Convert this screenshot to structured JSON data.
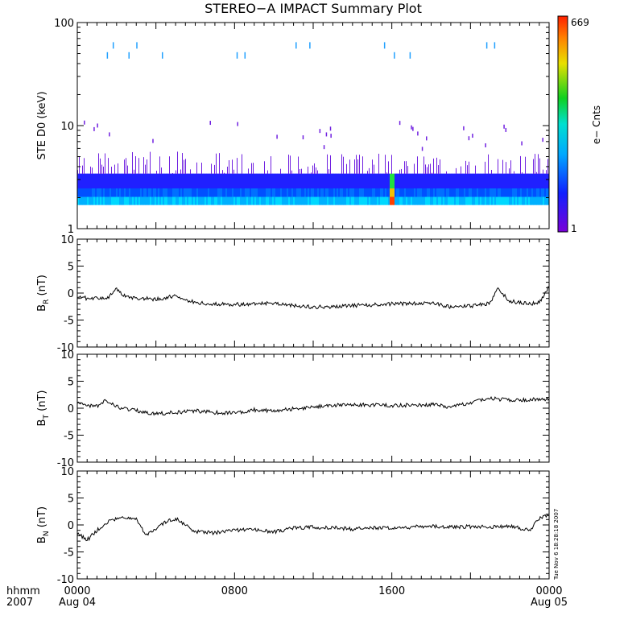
{
  "title": "STEREO−A IMPACT Summary Plot",
  "stamp": "Tue Nov  6 18:28:18 2007",
  "time_axis": {
    "label_top": "hhmm",
    "label_bottom": "2007",
    "ticks": [
      {
        "hour": 0,
        "top": "0000",
        "bottom": "Aug 04"
      },
      {
        "hour": 8,
        "top": "0800",
        "bottom": ""
      },
      {
        "hour": 16,
        "top": "1600",
        "bottom": ""
      },
      {
        "hour": 24,
        "top": "0000",
        "bottom": "Aug 05"
      }
    ],
    "range_hours": [
      0,
      24
    ]
  },
  "chart_data": [
    {
      "type": "heatmap",
      "ylabel": "STE D0 (keV)",
      "yscale": "log",
      "ylim": [
        1,
        100
      ],
      "ytick_labels": [
        "1",
        "10",
        "100"
      ],
      "xlim_hours": [
        0,
        24
      ],
      "colorbar": {
        "label": "e− Cnts",
        "min": 1,
        "max": 669,
        "min_label": "1",
        "max_label": "669"
      },
      "bands_keV": [
        2.0,
        2.4,
        2.9
      ],
      "notes": "dense counts between ~1.9 and ~3.1 keV across the day; sparse high-energy hits up to ~60 keV; peak near 16:00"
    },
    {
      "type": "line",
      "ylabel": "B",
      "ylabel_sub": "R",
      "yunit": "(nT)",
      "ylim": [
        -10,
        10
      ],
      "ytick_labels": [
        "-10",
        "-5",
        "0",
        "5",
        "10"
      ],
      "x": [
        0,
        0.5,
        1,
        1.5,
        2,
        2.5,
        3,
        3.5,
        4,
        5,
        6,
        7,
        8,
        9,
        10,
        11,
        12,
        13,
        14,
        15,
        16,
        17,
        18,
        19,
        20,
        21,
        21.4,
        22,
        23,
        23.5,
        24
      ],
      "y": [
        -0.5,
        -1,
        -0.8,
        -1,
        0.8,
        -0.8,
        -1,
        -1,
        -1.2,
        -0.5,
        -1.8,
        -2,
        -2.1,
        -2,
        -1.9,
        -2.3,
        -2.6,
        -2.5,
        -2.3,
        -2.2,
        -2,
        -1.9,
        -1.8,
        -2.6,
        -2.4,
        -1.9,
        0.8,
        -1.5,
        -2,
        -1.8,
        1.2
      ]
    },
    {
      "type": "line",
      "ylabel": "B",
      "ylabel_sub": "T",
      "yunit": "(nT)",
      "ylim": [
        -10,
        10
      ],
      "ytick_labels": [
        "-10",
        "-5",
        "0",
        "5",
        "10"
      ],
      "x": [
        0,
        0.5,
        1,
        1.5,
        2,
        2.5,
        3,
        3.5,
        4,
        5,
        6,
        7,
        8,
        9,
        10,
        11,
        12,
        13,
        14,
        15,
        16,
        17,
        18,
        19,
        20,
        21,
        22,
        23,
        24
      ],
      "y": [
        1.3,
        0.5,
        0.3,
        1.5,
        0.3,
        -0.2,
        -0.4,
        -0.8,
        -1,
        -0.8,
        -0.5,
        -0.8,
        -0.9,
        -0.3,
        -0.5,
        -0.1,
        0.2,
        0.5,
        0.7,
        0.6,
        0.5,
        0.6,
        0.7,
        0.2,
        1,
        1.8,
        1.5,
        1.6,
        1.7
      ]
    },
    {
      "type": "line",
      "ylabel": "B",
      "ylabel_sub": "N",
      "yunit": "(nT)",
      "ylim": [
        -10,
        10
      ],
      "ytick_labels": [
        "-10",
        "-5",
        "0",
        "5",
        "10"
      ],
      "x": [
        0,
        0.5,
        1,
        1.5,
        2,
        2.5,
        3,
        3.5,
        4,
        4.5,
        5,
        5.5,
        6,
        7,
        8,
        9,
        10,
        11,
        12,
        13,
        14,
        15,
        16,
        17,
        18,
        19,
        20,
        21,
        22,
        23,
        23.6,
        24
      ],
      "y": [
        -1.5,
        -2.8,
        -1,
        0.5,
        1.2,
        1.5,
        1,
        -1.8,
        -0.8,
        0.5,
        1.2,
        0,
        -1.2,
        -1.5,
        -1,
        -0.8,
        -1.3,
        -0.6,
        -0.4,
        -0.5,
        -0.8,
        -0.5,
        -0.6,
        -0.4,
        -0.2,
        -0.4,
        -0.3,
        -0.4,
        -0.2,
        -1,
        1.5,
        1.8
      ]
    }
  ]
}
